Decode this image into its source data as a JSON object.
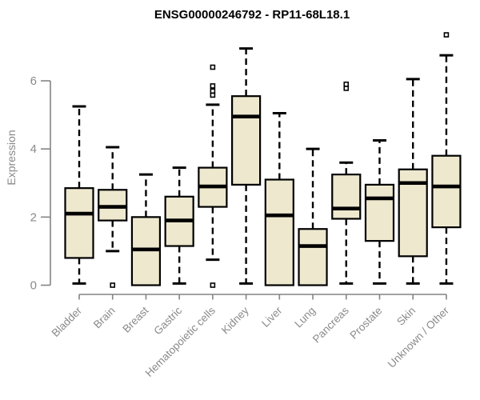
{
  "chart_data": {
    "type": "boxplot",
    "title": "ENSG00000246792 - RP11-68L18.1",
    "ylabel": "Expression",
    "xlabel": "",
    "ylim": [
      0,
      7.5
    ],
    "y_ticks": [
      0,
      2,
      4,
      6
    ],
    "grid": false,
    "legend": "none",
    "colors": {
      "box_fill": "#EDE8CE",
      "box_stroke": "#000000",
      "axis_line": "#848484",
      "tick_text": "#8a8a8a",
      "title_text": "#000000"
    },
    "categories": [
      "Bladder",
      "Brain",
      "Breast",
      "Gastric",
      "Hematopoietic cells",
      "Kidney",
      "Liver",
      "Lung",
      "Pancreas",
      "Prostate",
      "Skin",
      "Unknown / Other"
    ],
    "series": [
      {
        "category": "Bladder",
        "whisker_low": 0.05,
        "q1": 0.8,
        "median": 2.1,
        "q3": 2.85,
        "whisker_high": 5.25,
        "outliers": []
      },
      {
        "category": "Brain",
        "whisker_low": 1.0,
        "q1": 1.9,
        "median": 2.3,
        "q3": 2.8,
        "whisker_high": 4.05,
        "outliers": [
          0.0
        ]
      },
      {
        "category": "Breast",
        "whisker_low": 0.0,
        "q1": 0.0,
        "median": 1.05,
        "q3": 2.0,
        "whisker_high": 3.25,
        "outliers": []
      },
      {
        "category": "Gastric",
        "whisker_low": 0.05,
        "q1": 1.15,
        "median": 1.9,
        "q3": 2.6,
        "whisker_high": 3.45,
        "outliers": []
      },
      {
        "category": "Hematopoietic cells",
        "whisker_low": 0.75,
        "q1": 2.3,
        "median": 2.9,
        "q3": 3.45,
        "whisker_high": 5.3,
        "outliers": [
          6.4,
          5.85,
          5.7,
          5.58,
          0.0
        ]
      },
      {
        "category": "Kidney",
        "whisker_low": 0.05,
        "q1": 2.95,
        "median": 4.95,
        "q3": 5.55,
        "whisker_high": 6.95,
        "outliers": []
      },
      {
        "category": "Liver",
        "whisker_low": 0.0,
        "q1": 0.0,
        "median": 2.05,
        "q3": 3.1,
        "whisker_high": 5.05,
        "outliers": []
      },
      {
        "category": "Lung",
        "whisker_low": 0.0,
        "q1": 0.0,
        "median": 1.15,
        "q3": 1.65,
        "whisker_high": 4.0,
        "outliers": []
      },
      {
        "category": "Pancreas",
        "whisker_low": 0.05,
        "q1": 1.95,
        "median": 2.25,
        "q3": 3.25,
        "whisker_high": 3.6,
        "outliers": [
          5.9,
          5.78
        ]
      },
      {
        "category": "Prostate",
        "whisker_low": 0.05,
        "q1": 1.3,
        "median": 2.55,
        "q3": 2.95,
        "whisker_high": 4.25,
        "outliers": []
      },
      {
        "category": "Skin",
        "whisker_low": 0.05,
        "q1": 0.85,
        "median": 3.0,
        "q3": 3.4,
        "whisker_high": 6.05,
        "outliers": []
      },
      {
        "category": "Unknown / Other",
        "whisker_low": 0.05,
        "q1": 1.7,
        "median": 2.9,
        "q3": 3.8,
        "whisker_high": 6.75,
        "outliers": [
          7.35
        ]
      }
    ]
  }
}
